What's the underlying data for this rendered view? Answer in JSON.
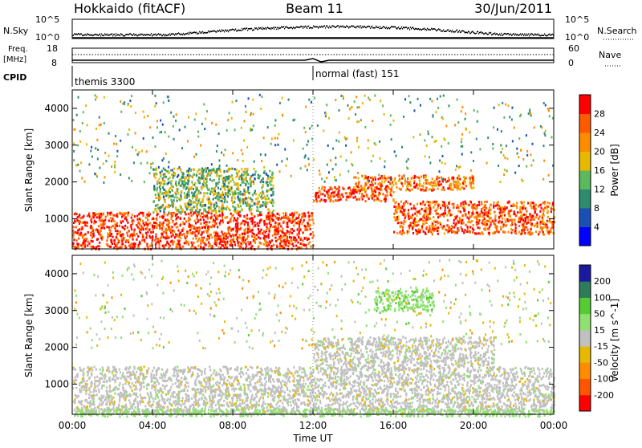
{
  "header": {
    "station": "Hokkaido (fitACF)",
    "beam": "Beam 11",
    "date": "30/Jun/2011"
  },
  "nsky_panel": {
    "left_label": "N.Sky",
    "right_label": "N.Search",
    "left_ticks": [
      "10^5",
      "10^0"
    ],
    "right_ticks": [
      "10^5",
      "10^0"
    ]
  },
  "freq_panel": {
    "left_label_1": "Freq.",
    "left_label_2": "[MHz]",
    "right_label": "Nave",
    "left_ticks": [
      "18",
      "8"
    ],
    "right_ticks": [
      "60",
      "0"
    ]
  },
  "cpid_panel": {
    "label": "CPID",
    "modes": [
      {
        "name": "themis 3300",
        "start_hour": 0
      },
      {
        "name": "normal (fast) 151",
        "start_hour": 12
      }
    ]
  },
  "time_axis": {
    "label": "Time UT",
    "ticks": [
      "00:00",
      "04:00",
      "08:00",
      "12:00",
      "16:00",
      "20:00",
      "00:00"
    ]
  },
  "power_panel": {
    "ylabel": "Slant Range [km]",
    "yticks": [
      "1000",
      "2000",
      "3000",
      "4000"
    ],
    "colorbar_label": "Power [dB]",
    "colorbar_ticks": [
      "4",
      "8",
      "12",
      "16",
      "20",
      "24",
      "28"
    ],
    "colors": [
      "#0000ff",
      "#1a4fb3",
      "#2e8b6e",
      "#5cb85c",
      "#e6b800",
      "#ff8c00",
      "#ff5a00",
      "#ff0000"
    ]
  },
  "velocity_panel": {
    "ylabel": "Slant Range [km]",
    "yticks": [
      "1000",
      "2000",
      "3000",
      "4000"
    ],
    "colorbar_label": "Velocity [m s^-1]",
    "colorbar_ticks": [
      "200",
      "100",
      "50",
      "15",
      "-15",
      "-50",
      "-100",
      "-200"
    ],
    "colors": [
      "#1a1aa0",
      "#2e7d5a",
      "#55cc33",
      "#8fe070",
      "#c0c0c0",
      "#e6b800",
      "#ff8c00",
      "#ff5500",
      "#ff0000"
    ]
  },
  "chart_data": [
    {
      "type": "heatmap",
      "title": "Power",
      "x_unit": "hour UT",
      "xlim": [
        0,
        24
      ],
      "ylabel": "Slant Range [km]",
      "ylim": [
        180,
        4500
      ],
      "colorbar_label": "Power [dB]",
      "clim": [
        0,
        32
      ],
      "description_regions": [
        {
          "hours": [
            0,
            12
          ],
          "range_km": [
            200,
            1200
          ],
          "power_db": 28
        },
        {
          "hours": [
            4,
            10
          ],
          "range_km": [
            1200,
            2400
          ],
          "power_db": 14
        },
        {
          "hours": [
            12,
            16
          ],
          "range_km": [
            1500,
            1900
          ],
          "power_db": 28
        },
        {
          "hours": [
            14,
            20
          ],
          "range_km": [
            1800,
            2200
          ],
          "power_db": 24
        },
        {
          "hours": [
            16,
            24
          ],
          "range_km": [
            600,
            1500
          ],
          "power_db": 26
        }
      ]
    },
    {
      "type": "heatmap",
      "title": "Velocity",
      "x_unit": "hour UT",
      "xlim": [
        0,
        24
      ],
      "ylabel": "Slant Range [km]",
      "ylim": [
        180,
        4500
      ],
      "colorbar_label": "Velocity [m s^-1]",
      "clim": [
        -250,
        250
      ],
      "description_regions": [
        {
          "hours": [
            0,
            24
          ],
          "range_km": [
            200,
            1500
          ],
          "velocity": 0
        },
        {
          "hours": [
            0,
            24
          ],
          "range_km": [
            150,
            350
          ],
          "velocity": 30
        },
        {
          "hours": [
            12,
            21
          ],
          "range_km": [
            1500,
            2300
          ],
          "velocity": 0
        },
        {
          "hours": [
            15,
            18
          ],
          "range_km": [
            3000,
            3600
          ],
          "velocity": 40
        }
      ]
    }
  ]
}
